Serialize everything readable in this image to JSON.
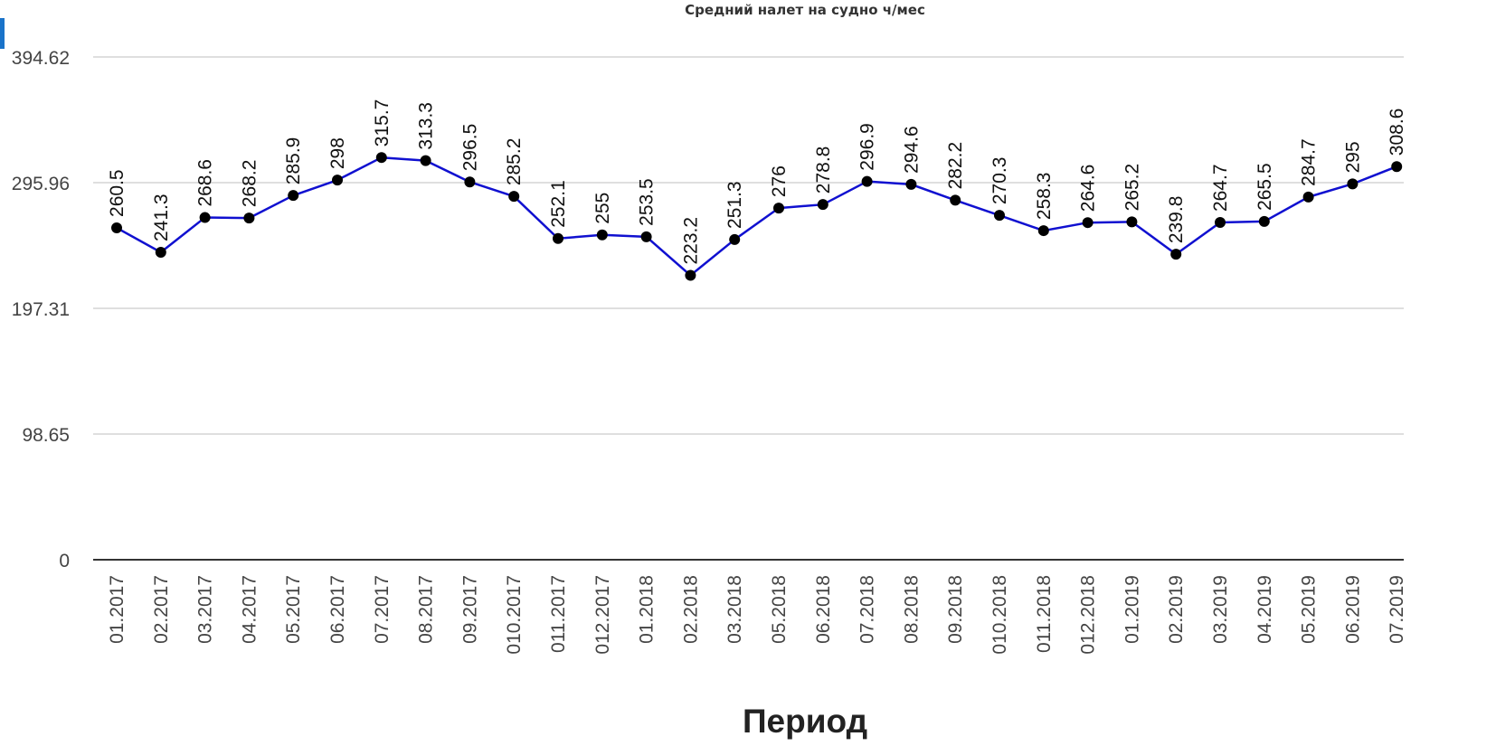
{
  "chart_data": {
    "type": "line",
    "title": "Средний налет на судно ч/мес",
    "xlabel": "Период",
    "ylabel": "",
    "ylim": [
      0,
      394.62
    ],
    "yticks": [
      "0",
      "98.65",
      "197.31",
      "295.96",
      "394.62"
    ],
    "grid": true,
    "categories": [
      "01.2017",
      "02.2017",
      "03.2017",
      "04.2017",
      "05.2017",
      "06.2017",
      "07.2017",
      "08.2017",
      "09.2017",
      "010.2017",
      "011.2017",
      "012.2017",
      "01.2018",
      "02.2018",
      "03.2018",
      "05.2018",
      "06.2018",
      "07.2018",
      "08.2018",
      "09.2018",
      "010.2018",
      "011.2018",
      "012.2018",
      "01.2019",
      "02.2019",
      "03.2019",
      "04.2019",
      "05.2019",
      "06.2019",
      "07.2019"
    ],
    "series": [
      {
        "values": [
          260.5,
          241.3,
          268.6,
          268.2,
          285.9,
          298,
          315.7,
          313.3,
          296.5,
          285.2,
          252.1,
          255,
          253.5,
          223.2,
          251.3,
          276,
          278.8,
          296.9,
          294.6,
          282.2,
          270.3,
          258.3,
          264.6,
          265.2,
          239.8,
          264.7,
          265.5,
          284.7,
          295,
          308.6
        ],
        "labels": [
          "260.5",
          "241.3",
          "268.6",
          "268.2",
          "285.9",
          "298",
          "315.7",
          "313.3",
          "296.5",
          "285.2",
          "252.1",
          "255",
          "253.5",
          "223.2",
          "251.3",
          "276",
          "278.8",
          "296.9",
          "294.6",
          "282.2",
          "270.3",
          "258.3",
          "264.6",
          "265.2",
          "239.8",
          "264.7",
          "265.5",
          "284.7",
          "295",
          "308.6"
        ]
      }
    ]
  },
  "colors": {
    "line": "#1010d0",
    "marker": "#000000",
    "accent": "#1a73c9"
  }
}
